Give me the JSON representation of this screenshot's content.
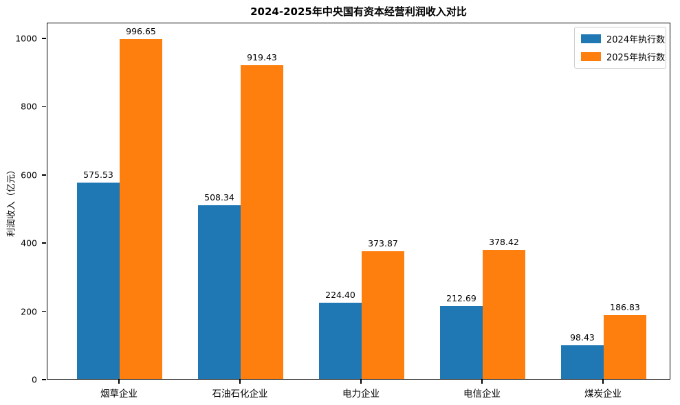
{
  "chart_data": {
    "type": "bar",
    "title": "2024-2025年中央国有资本经营利润收入对比",
    "xlabel": "",
    "ylabel": "利润收入（亿元）",
    "categories": [
      "烟草企业",
      "石油石化企业",
      "电力企业",
      "电信企业",
      "煤炭企业"
    ],
    "series": [
      {
        "name": "2024年执行数",
        "color": "#1f77b4",
        "values": [
          575.53,
          508.34,
          224.4,
          212.69,
          98.43
        ]
      },
      {
        "name": "2025年执行数",
        "color": "#ff7f0e",
        "values": [
          996.65,
          919.43,
          373.87,
          378.42,
          186.83
        ]
      }
    ],
    "ylim": [
      0,
      1046.5
    ],
    "yticks": [
      0,
      200,
      400,
      600,
      800,
      1000
    ],
    "legend_position": "upper right",
    "grid": false,
    "bar_value_labels": true,
    "value_label_decimals": 2
  }
}
